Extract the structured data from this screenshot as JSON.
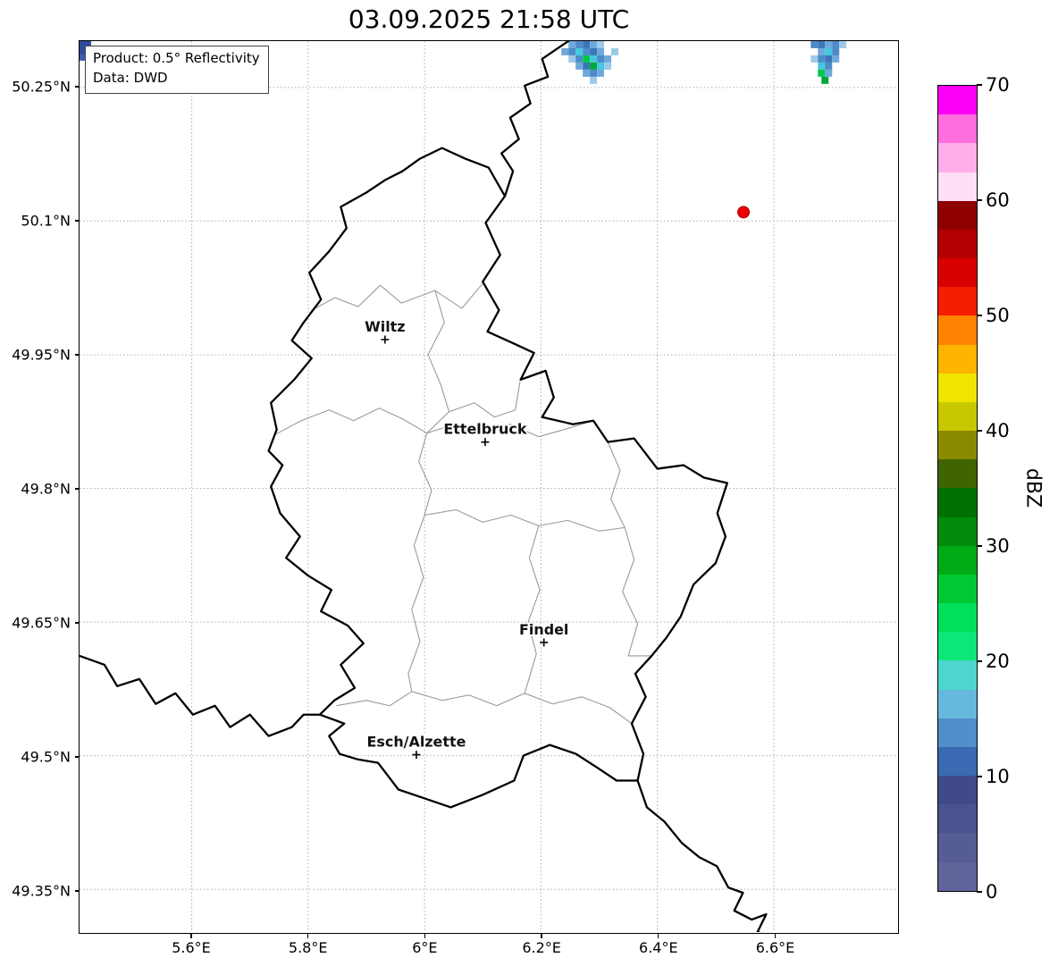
{
  "title": "03.09.2025 21:58 UTC",
  "info_box": {
    "line1": "Product: 0.5° Reflectivity",
    "line2": "Data: DWD"
  },
  "axes": {
    "x_tick_labels": [
      "5.6°E",
      "5.8°E",
      "6°E",
      "6.2°E",
      "6.4°E",
      "6.6°E"
    ],
    "x_tick_values": [
      5.6,
      5.8,
      6.0,
      6.2,
      6.4,
      6.6
    ],
    "y_tick_labels": [
      "50.25°N",
      "50.1°N",
      "49.95°N",
      "49.8°N",
      "49.65°N",
      "49.5°N",
      "49.35°N"
    ],
    "y_tick_values": [
      50.25,
      50.1,
      49.95,
      49.8,
      49.65,
      49.5,
      49.35
    ]
  },
  "cities": [
    {
      "name": "Wiltz",
      "lon": 5.932,
      "lat": 49.967
    },
    {
      "name": "Ettelbruck",
      "lon": 6.104,
      "lat": 49.852
    },
    {
      "name": "Findel",
      "lon": 6.205,
      "lat": 49.627
    },
    {
      "name": "Esch/Alzette",
      "lon": 5.986,
      "lat": 49.501
    }
  ],
  "radar_site": {
    "lon": 6.548,
    "lat": 50.11,
    "color": "#ee0000"
  },
  "colorbar": {
    "label": "dBZ",
    "min": 0,
    "max": 70,
    "ticks": [
      {
        "label": "70",
        "value": 70
      },
      {
        "label": "60",
        "value": 60
      },
      {
        "label": "50",
        "value": 50
      },
      {
        "label": "40",
        "value": 40
      },
      {
        "label": "30",
        "value": 30
      },
      {
        "label": "20",
        "value": 20
      },
      {
        "label": "10",
        "value": 10
      },
      {
        "label": "0",
        "value": 0
      }
    ],
    "colors_bottom_to_top": [
      "#60649a",
      "#565c94",
      "#4b538e",
      "#414a88",
      "#3c6ab2",
      "#4f8fca",
      "#65b9dd",
      "#4cd6cf",
      "#0ce878",
      "#00e05a",
      "#00c832",
      "#00aa14",
      "#008c0a",
      "#007000",
      "#3f6400",
      "#8a8a00",
      "#c8c800",
      "#f0e400",
      "#ffb400",
      "#ff8200",
      "#f51d00",
      "#d90000",
      "#b40000",
      "#8f0000",
      "#ffdff5",
      "#ffaee9",
      "#ff6ede",
      "#fb00f5"
    ]
  },
  "echo_cells": [
    [
      0,
      0,
      "#2e4da0",
      13,
      15
    ],
    [
      0,
      15,
      "#3f5cac",
      7,
      7
    ],
    [
      549,
      0,
      "#6fa8dc"
    ],
    [
      557,
      0,
      "#4f8bc8"
    ],
    [
      565,
      0,
      "#3b76bb"
    ],
    [
      573,
      0,
      "#6fa8dc"
    ],
    [
      581,
      0,
      "#9ec9e8"
    ],
    [
      541,
      8,
      "#6fa8dc"
    ],
    [
      549,
      8,
      "#4f8bc8"
    ],
    [
      557,
      8,
      "#45c8e0"
    ],
    [
      565,
      8,
      "#4f8bc8"
    ],
    [
      573,
      8,
      "#3b76bb"
    ],
    [
      581,
      8,
      "#6fa8dc"
    ],
    [
      597,
      8,
      "#9ec9e8"
    ],
    [
      549,
      16,
      "#9ec9e8"
    ],
    [
      557,
      16,
      "#4f8bc8"
    ],
    [
      565,
      16,
      "#00c84a"
    ],
    [
      573,
      16,
      "#45c8e0"
    ],
    [
      581,
      16,
      "#4f8bc8"
    ],
    [
      589,
      16,
      "#6fa8dc"
    ],
    [
      557,
      24,
      "#6fa8dc"
    ],
    [
      565,
      24,
      "#3b76bb"
    ],
    [
      573,
      24,
      "#00a83c"
    ],
    [
      581,
      24,
      "#45c8e0"
    ],
    [
      589,
      24,
      "#9ec9e8"
    ],
    [
      565,
      32,
      "#6fa8dc"
    ],
    [
      573,
      32,
      "#4f8bc8"
    ],
    [
      581,
      32,
      "#6fa8dc"
    ],
    [
      573,
      40,
      "#9ec9e8"
    ],
    [
      821,
      0,
      "#4f8bc8"
    ],
    [
      829,
      0,
      "#3b76bb"
    ],
    [
      837,
      0,
      "#6fa8dc"
    ],
    [
      845,
      0,
      "#4f8bc8"
    ],
    [
      853,
      0,
      "#9ec9e8"
    ],
    [
      829,
      8,
      "#6fa8dc"
    ],
    [
      837,
      8,
      "#45c8e0"
    ],
    [
      845,
      8,
      "#4f8bc8"
    ],
    [
      821,
      16,
      "#9ec9e8"
    ],
    [
      829,
      16,
      "#4f8bc8"
    ],
    [
      837,
      16,
      "#3b76bb"
    ],
    [
      845,
      16,
      "#6fa8dc"
    ],
    [
      829,
      24,
      "#45c8e0"
    ],
    [
      837,
      24,
      "#4f8bc8"
    ],
    [
      829,
      32,
      "#00c84a"
    ],
    [
      837,
      32,
      "#6fa8dc"
    ],
    [
      833,
      40,
      "#00a83c"
    ]
  ]
}
